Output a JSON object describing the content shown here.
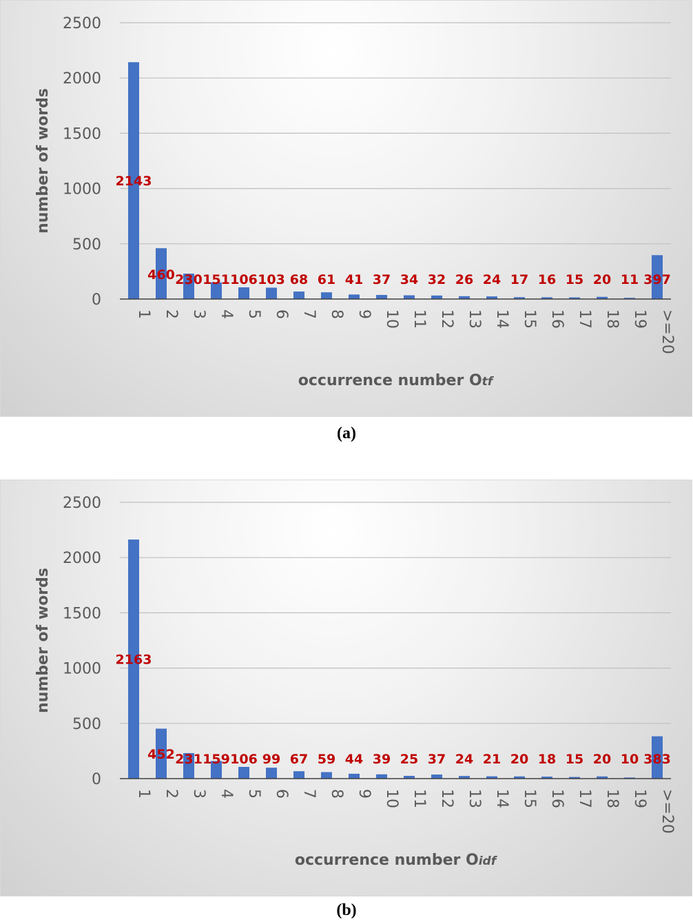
{
  "charts": [
    {
      "id": "a",
      "caption": "(a)",
      "chart_data": {
        "type": "bar",
        "categories": [
          "1",
          "2",
          "3",
          "4",
          "5",
          "6",
          "7",
          "8",
          "9",
          "10",
          "11",
          "12",
          "13",
          "14",
          "15",
          "16",
          "17",
          "18",
          "19",
          ">=20"
        ],
        "values": [
          2143,
          460,
          230,
          151,
          106,
          103,
          68,
          61,
          41,
          37,
          34,
          32,
          26,
          24,
          17,
          16,
          15,
          20,
          11,
          397
        ],
        "data_labels": [
          "2143",
          "460",
          "230",
          "151",
          "106",
          "103",
          "68",
          "61",
          "41",
          "37",
          "34",
          "32",
          "26",
          "24",
          "17",
          "16",
          "15",
          "20",
          "11",
          "397"
        ],
        "xlabel_main": "occurrence number O",
        "xlabel_sub": "tf",
        "ylabel": "number of words",
        "ylim": [
          0,
          2500
        ],
        "yticks": [
          "0",
          "500",
          "1000",
          "1500",
          "2000",
          "2500"
        ],
        "grid": true,
        "colors": {
          "bar": "#4472c4",
          "data_label": "#c00000"
        }
      }
    },
    {
      "id": "b",
      "caption": "(b)",
      "chart_data": {
        "type": "bar",
        "categories": [
          "1",
          "2",
          "3",
          "4",
          "5",
          "6",
          "7",
          "8",
          "9",
          "10",
          "11",
          "12",
          "13",
          "14",
          "15",
          "16",
          "17",
          "18",
          "19",
          ">=20"
        ],
        "values": [
          2163,
          452,
          231,
          159,
          106,
          99,
          67,
          59,
          44,
          39,
          25,
          37,
          24,
          21,
          20,
          18,
          15,
          20,
          10,
          383
        ],
        "data_labels": [
          "2163",
          "452",
          "231",
          "159",
          "106",
          "99",
          "67",
          "59",
          "44",
          "39",
          "25",
          "37",
          "24",
          "21",
          "20",
          "18",
          "15",
          "20",
          "10",
          "383"
        ],
        "xlabel_main": "occurrence number  O",
        "xlabel_sub": "idf",
        "ylabel": "number of words",
        "ylim": [
          0,
          2500
        ],
        "yticks": [
          "0",
          "500",
          "1000",
          "1500",
          "2000",
          "2500"
        ],
        "grid": true,
        "colors": {
          "bar": "#4472c4",
          "data_label": "#c00000"
        }
      }
    }
  ]
}
